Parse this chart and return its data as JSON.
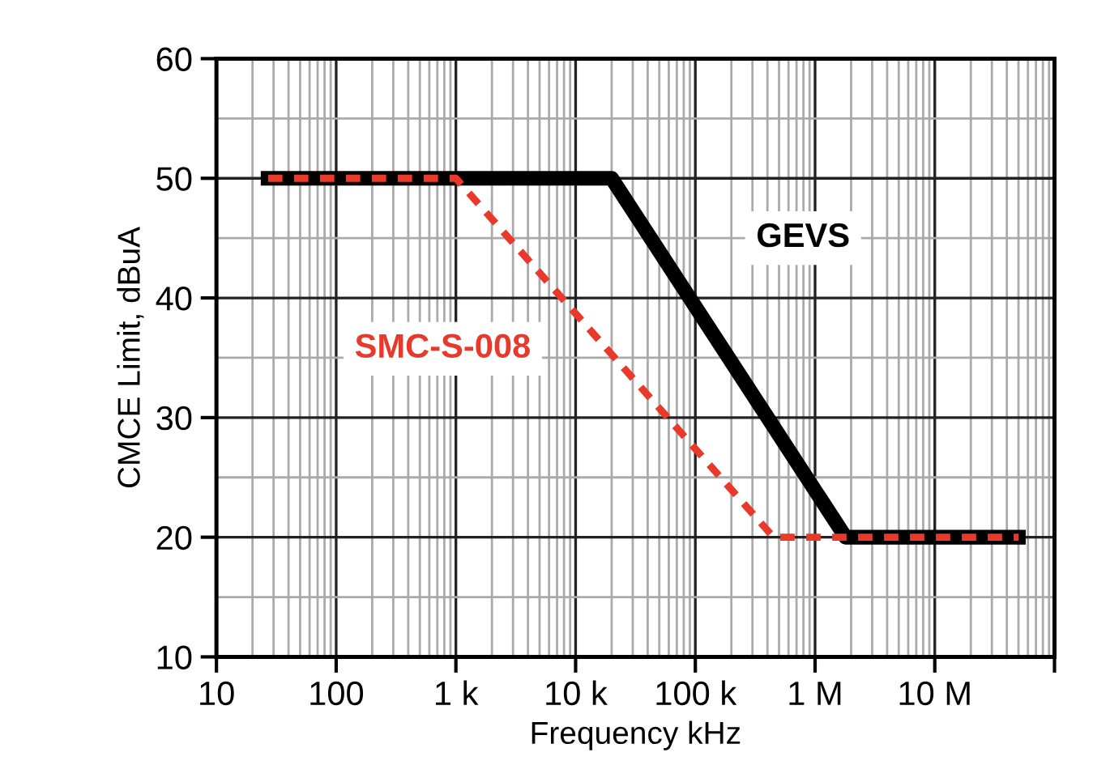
{
  "chart_data": {
    "type": "line",
    "xlabel": "Frequency kHz",
    "ylabel": "CMCE Limit, dBuA",
    "log": "x",
    "xlim": [
      10,
      100000000
    ],
    "xticks": [
      {
        "value": 10,
        "label": "10"
      },
      {
        "value": 100,
        "label": "100"
      },
      {
        "value": 1000,
        "label": "1 k"
      },
      {
        "value": 10000,
        "label": "10 k"
      },
      {
        "value": 100000,
        "label": "100 k"
      },
      {
        "value": 1000000,
        "label": "1 M"
      },
      {
        "value": 10000000,
        "label": "10 M"
      },
      {
        "value": 100000000,
        "label": null
      }
    ],
    "ylim": [
      10,
      60
    ],
    "yticks": [
      10,
      20,
      30,
      40,
      50,
      60
    ],
    "grid": true,
    "marker": "none",
    "series": [
      {
        "name": "GEVS",
        "color": "#000000",
        "line_style": "solid",
        "x": [
          27,
          20000,
          1800000,
          50000000
        ],
        "values": [
          50,
          50,
          20,
          20
        ]
      },
      {
        "name": "SMC-S-008",
        "color": "#e8392a",
        "line_style": "dashed",
        "x": [
          27,
          1000,
          450000,
          50000000
        ],
        "values": [
          50,
          50,
          20,
          20
        ]
      }
    ]
  }
}
